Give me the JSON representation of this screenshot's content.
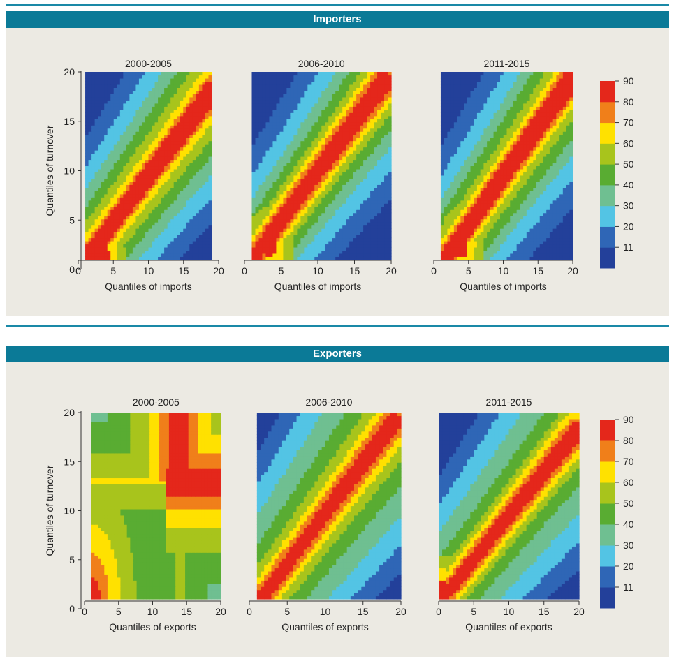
{
  "colors": {
    "header_bg": "#0b7a97",
    "panel_bg": "#eceae3",
    "levels": [
      "#23409a",
      "#2f66b6",
      "#53c4e4",
      "#6fbf91",
      "#59ac32",
      "#a8c41c",
      "#ffe100",
      "#f07f1a",
      "#e4271b"
    ]
  },
  "panels": [
    {
      "title": "Importers",
      "chart_data": {
        "type": "heatmap",
        "ylabel": "Quantiles of turnover",
        "xlabel": "Quantiles of imports",
        "subplots": [
          {
            "title": "2000-2005",
            "xlim": [
              1,
              19
            ],
            "ylim": [
              1,
              20
            ],
            "ridge_x0": 1,
            "ridge_x1": 19,
            "ridge_y0": 1,
            "ridge_y1": 18,
            "width": [
              1.2,
              1.6,
              2.4,
              3.6,
              5.0,
              6.6,
              8.6,
              11
            ],
            "peak": {
              "x": 3.5,
              "y": 1.3,
              "level": 9
            }
          },
          {
            "title": "2006-2010",
            "xlim": [
              1,
              20
            ],
            "ylim": [
              1,
              20
            ],
            "ridge_x0": 1,
            "ridge_x1": 19,
            "ridge_y0": 1,
            "ridge_y1": 19,
            "width": [
              1.1,
              1.6,
              2.2,
              3.0,
              4.2,
              5.6,
              7.6,
              10
            ],
            "peak": {
              "x": 3.5,
              "y": 2.5,
              "level": 9
            }
          },
          {
            "title": "2011-2015",
            "xlim": [
              1,
              20
            ],
            "ylim": [
              1,
              20
            ],
            "ridge_x0": 1.5,
            "ridge_x1": 19.5,
            "ridge_y0": 1,
            "ridge_y1": 19,
            "width": [
              1.2,
              1.6,
              2.2,
              3.2,
              4.6,
              6.0,
              8.0,
              10.5
            ],
            "peak": {
              "x": 4,
              "y": 2.5,
              "level": 9
            }
          }
        ],
        "x_ticks": [
          0,
          5,
          10,
          15,
          20
        ],
        "y_ticks": [
          0,
          5,
          10,
          15,
          20
        ],
        "legend": {
          "position": "right",
          "labels": [
            "11",
            "20",
            "30",
            "40",
            "50",
            "60",
            "70",
            "80",
            "90"
          ]
        }
      }
    },
    {
      "title": "Exporters",
      "chart_data": {
        "type": "heatmap",
        "ylabel": "Quantiles of turnover",
        "xlabel": "Quantiles of exports",
        "subplots": [
          {
            "title": "2000-2005",
            "xlim": [
              1,
              20
            ],
            "ylim": [
              1,
              20
            ],
            "ridge_x0": 1,
            "ridge_x1": 1,
            "ridge_y0": 1,
            "ridge_y1": 1,
            "width": [
              1.3,
              2.6,
              4.2,
              6.5,
              9.5,
              13,
              17,
              22
            ],
            "peak": {
              "x": 1,
              "y": 2,
              "level": 9
            }
          },
          {
            "title": "2006-2010",
            "xlim": [
              1,
              20
            ],
            "ylim": [
              1,
              20
            ],
            "ridge_x0": 1.5,
            "ridge_x1": 19,
            "ridge_y0": 1,
            "ridge_y1": 19,
            "width": [
              1.0,
              1.6,
              2.4,
              3.6,
              5.5,
              8.0,
              10.5,
              13
            ],
            "peak": {
              "x": 4.5,
              "y": 4.5,
              "level": 8
            }
          },
          {
            "title": "2011-2015",
            "xlim": [
              0,
              20
            ],
            "ylim": [
              1,
              20
            ],
            "ridge_x0": 1,
            "ridge_x1": 19.5,
            "ridge_y0": 1.5,
            "ridge_y1": 18,
            "width": [
              1.0,
              1.5,
              2.2,
              3.0,
              4.6,
              7.0,
              9.5,
              12
            ],
            "peak": {
              "x": 0.5,
              "y": 1.6,
              "level": 9
            }
          }
        ],
        "x_ticks": [
          0,
          5,
          10,
          15,
          20
        ],
        "y_ticks": [
          0,
          5,
          10,
          15,
          20
        ],
        "legend": {
          "position": "right",
          "labels": [
            "11",
            "20",
            "30",
            "40",
            "50",
            "60",
            "70",
            "80",
            "90"
          ]
        }
      }
    }
  ]
}
